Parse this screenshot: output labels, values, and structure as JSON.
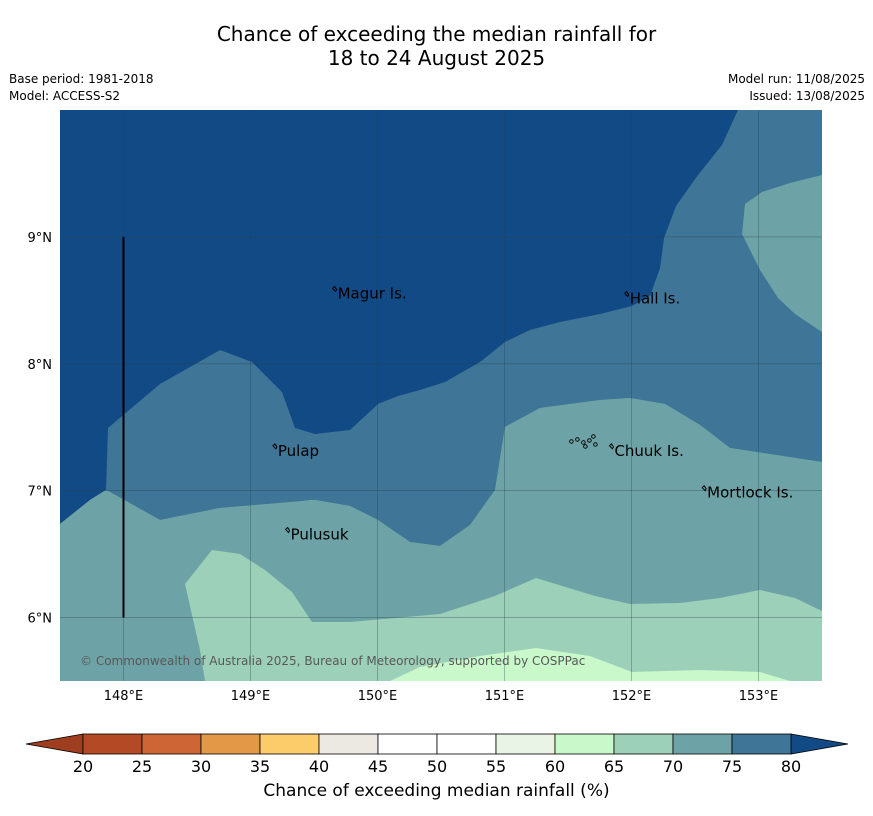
{
  "header": {
    "title_line1": "Chance of exceeding the median rainfall for",
    "title_line2": "18 to 24 August 2025",
    "base_period": "Base period: 1981-2018",
    "model": "Model: ACCESS-S2",
    "model_run": "Model run: 11/08/2025",
    "issued": "Issued: 13/08/2025"
  },
  "map": {
    "lon_range": [
      147.5,
      153.5
    ],
    "lat_range": [
      5.5,
      10.0
    ],
    "lon_ticks": [
      148,
      149,
      150,
      151,
      152,
      153
    ],
    "lon_tick_labels": [
      "148°E",
      "149°E",
      "150°E",
      "151°E",
      "152°E",
      "153°E"
    ],
    "lat_ticks": [
      6,
      7,
      8,
      9
    ],
    "lat_tick_labels": [
      "6°N",
      "7°N",
      "8°N",
      "9°N"
    ],
    "places": [
      {
        "name": "Magur Is.",
        "lon": 149.67,
        "lat": 8.57
      },
      {
        "name": "Hall Is.",
        "lon": 151.97,
        "lat": 8.53
      },
      {
        "name": "Pulap",
        "lon": 149.2,
        "lat": 7.33
      },
      {
        "name": "Chuuk Is.",
        "lon": 151.85,
        "lat": 7.33
      },
      {
        "name": "Mortlock Is.",
        "lon": 152.58,
        "lat": 7.0
      },
      {
        "name": "Pulusuk",
        "lon": 149.3,
        "lat": 6.67
      }
    ],
    "vertical_line_lon": 148.0,
    "vertical_line_lat_range": [
      6.0,
      9.0
    ],
    "copyright": "© Commonwealth of Australia 2025, Bureau of Meteorology, supported by COSPPac"
  },
  "colorbar": {
    "ticks": [
      "20",
      "25",
      "30",
      "35",
      "40",
      "45",
      "50",
      "55",
      "60",
      "65",
      "70",
      "75",
      "80"
    ],
    "colors": [
      "#b34a25",
      "#cd6534",
      "#e39848",
      "#fdcc6a",
      "#ece8e2",
      "#ffffff",
      "#ffffff",
      "#e9f4e7",
      "#c9f8ca",
      "#9dd0b9",
      "#6da3a6",
      "#3f7596"
    ],
    "under_color": "#9e3d1f",
    "over_color": "#124a85",
    "title": "Chance of exceeding median rainfall (%)"
  },
  "palette": {
    "p80": "#124a85",
    "p75": "#3f7596",
    "p70": "#6da3a6",
    "p65": "#9dd0b9",
    "p60": "#c9f8ca"
  }
}
